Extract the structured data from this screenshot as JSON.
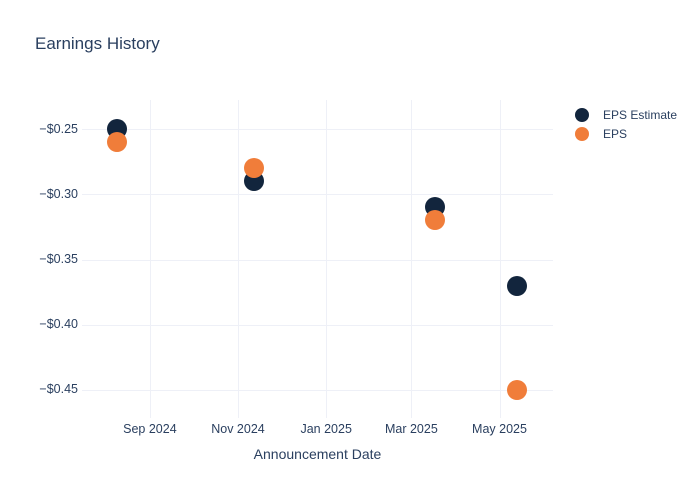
{
  "colors": {
    "text": "#2a3f5f",
    "grid": "#eef0f7",
    "background": "#ffffff",
    "eps_estimate": "#12253d",
    "eps": "#f07d3a"
  },
  "legend": {
    "items": [
      {
        "label": "EPS Estimate",
        "color": "#12253d"
      },
      {
        "label": "EPS",
        "color": "#f07d3a"
      }
    ]
  },
  "chart_data": {
    "type": "scatter",
    "title": "Earnings History",
    "xlabel": "Announcement Date",
    "ylabel": "",
    "grid": true,
    "legend_position": "right",
    "marker_diameter": 20,
    "x_axis": {
      "range": [
        "2024-07-16",
        "2025-06-07"
      ],
      "ticks": [
        {
          "date": "2024-09-01",
          "label": "Sep 2024"
        },
        {
          "date": "2024-11-01",
          "label": "Nov 2024"
        },
        {
          "date": "2025-01-01",
          "label": "Jan 2025"
        },
        {
          "date": "2025-03-01",
          "label": "Mar 2025"
        },
        {
          "date": "2025-05-01",
          "label": "May 2025"
        }
      ]
    },
    "y_axis": {
      "range": [
        -0.4692,
        -0.2278
      ],
      "ticks": [
        {
          "value": -0.25,
          "label": "−$0.25"
        },
        {
          "value": -0.3,
          "label": "−$0.30"
        },
        {
          "value": -0.35,
          "label": "−$0.35"
        },
        {
          "value": -0.4,
          "label": "−$0.40"
        },
        {
          "value": -0.45,
          "label": "−$0.45"
        }
      ]
    },
    "series": [
      {
        "name": "EPS Estimate",
        "color": "#12253d",
        "points": [
          {
            "date": "2024-08-09",
            "value": -0.25
          },
          {
            "date": "2024-11-12",
            "value": -0.29
          },
          {
            "date": "2025-03-17",
            "value": -0.31
          },
          {
            "date": "2025-05-13",
            "value": -0.37
          }
        ]
      },
      {
        "name": "EPS",
        "color": "#f07d3a",
        "points": [
          {
            "date": "2024-08-09",
            "value": -0.26
          },
          {
            "date": "2024-11-12",
            "value": -0.28
          },
          {
            "date": "2025-03-17",
            "value": -0.32
          },
          {
            "date": "2025-05-13",
            "value": -0.45
          }
        ]
      }
    ]
  }
}
